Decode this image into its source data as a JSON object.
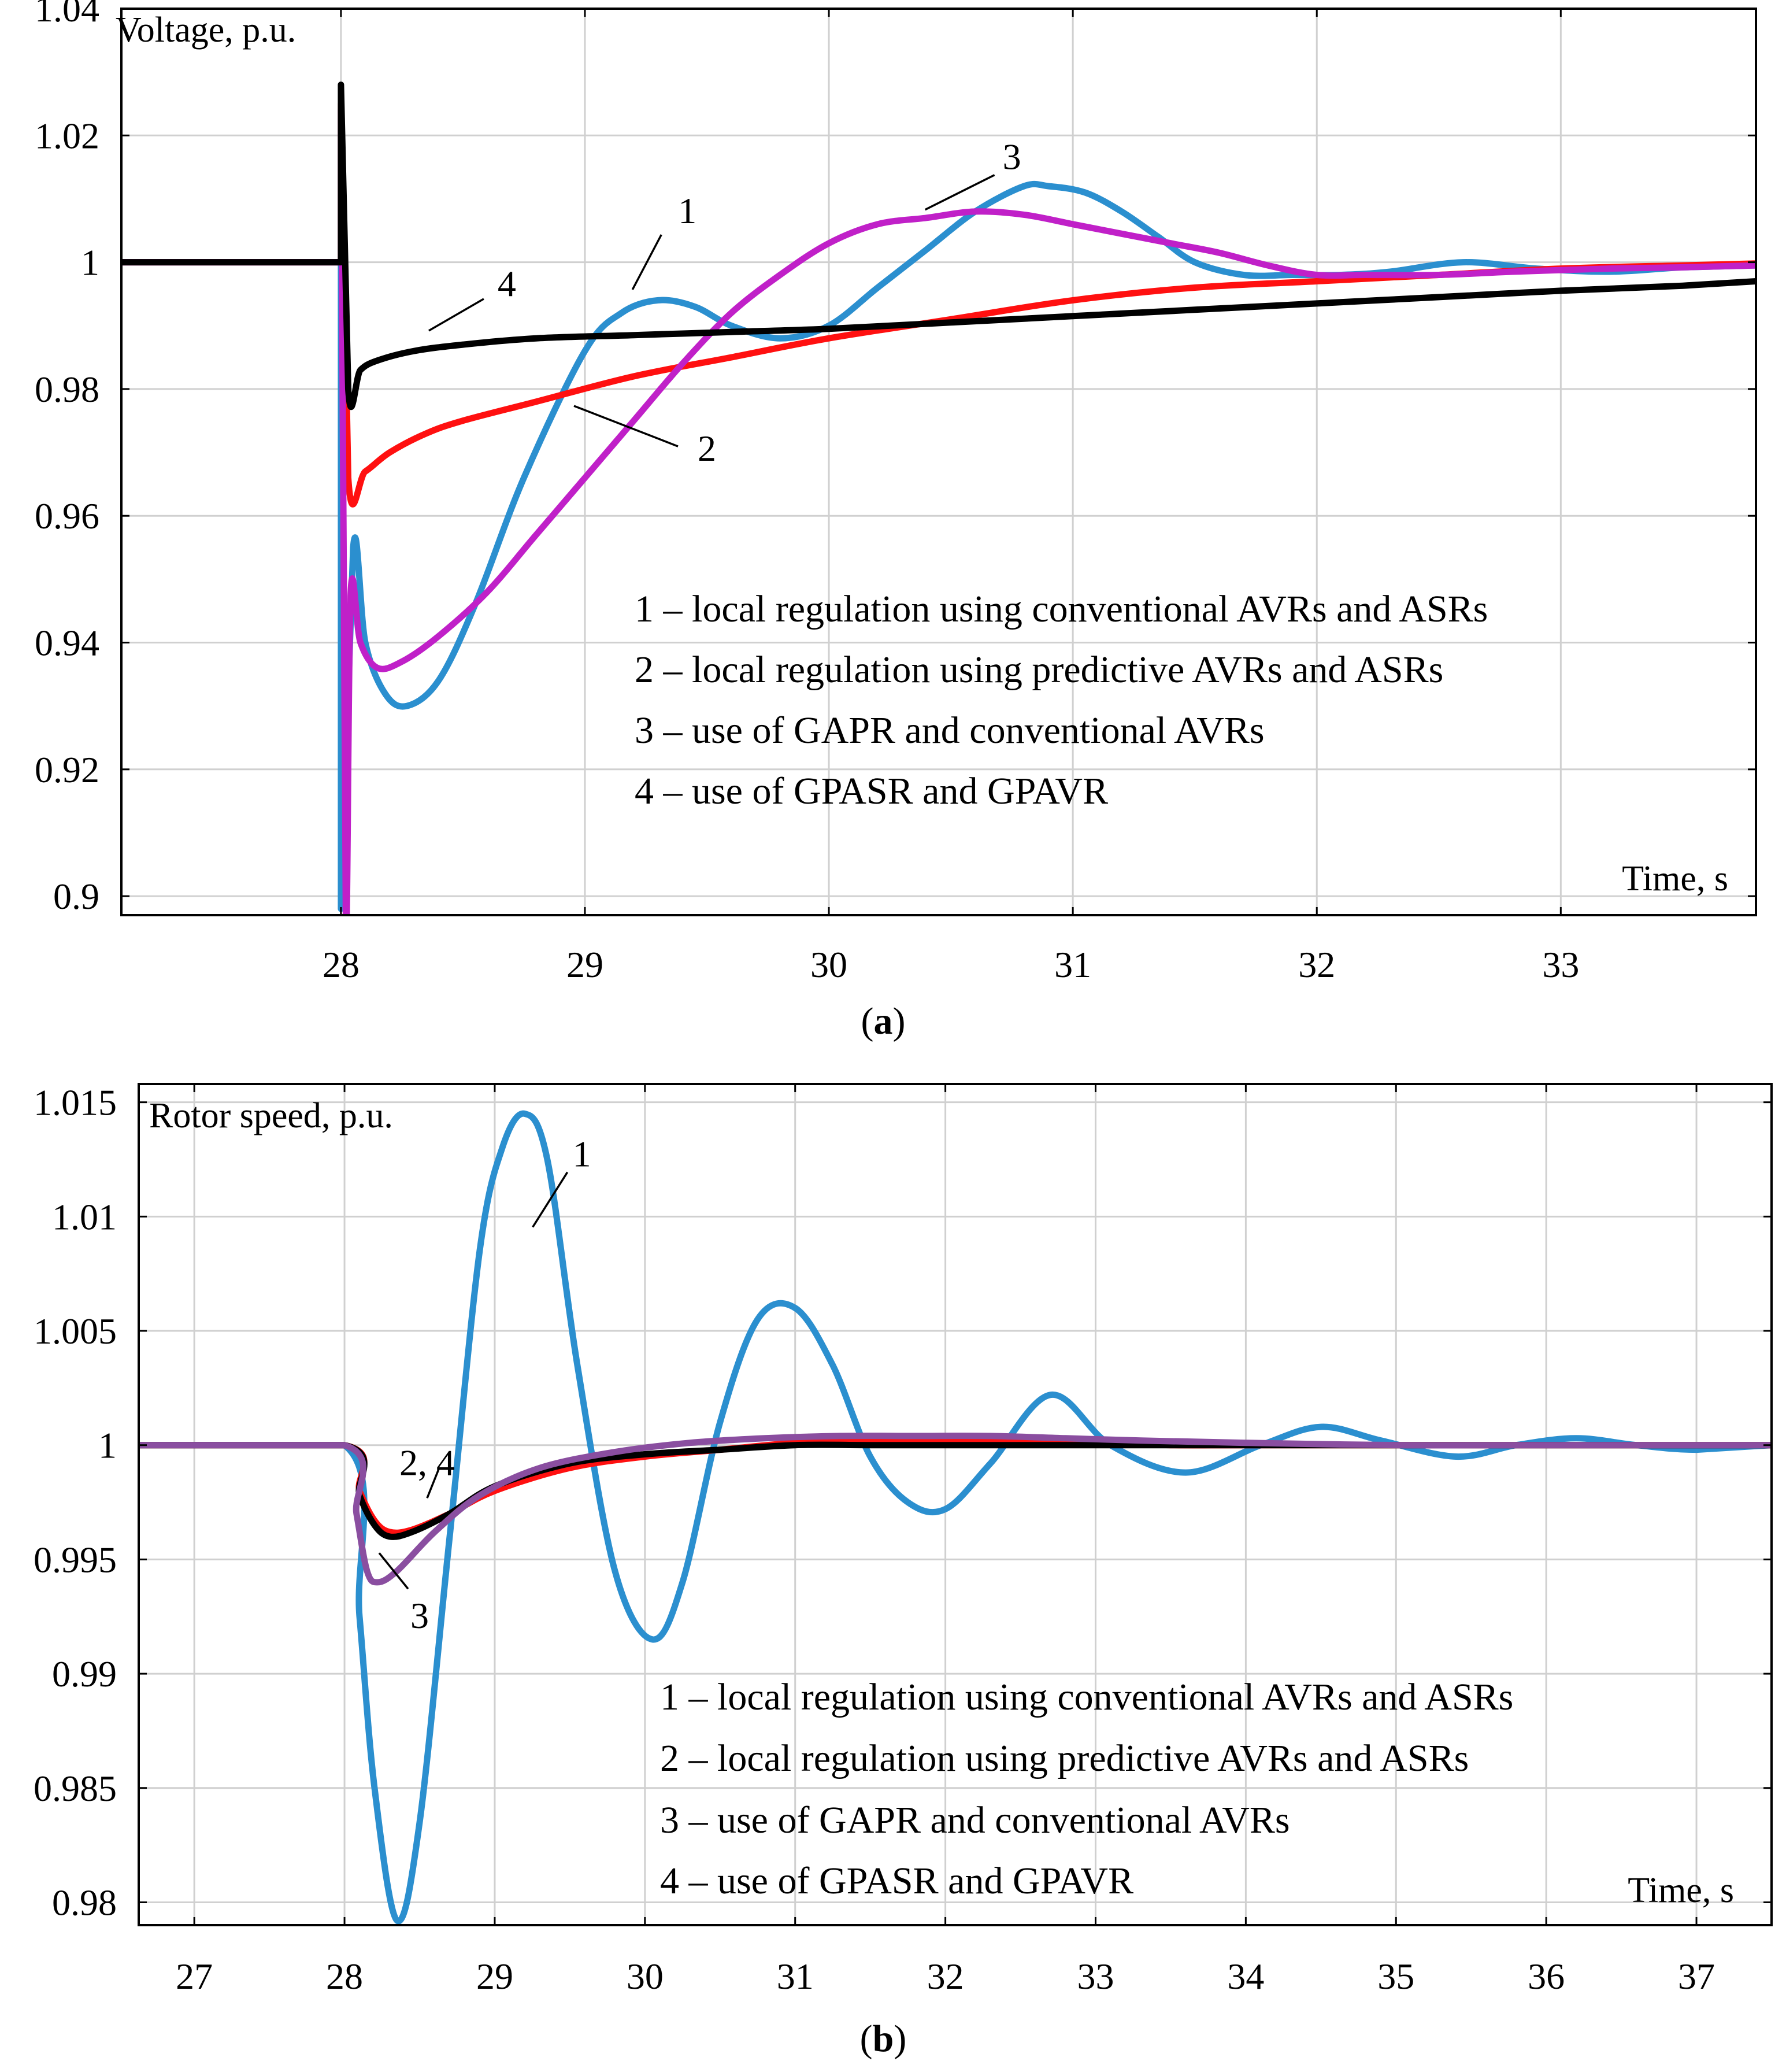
{
  "chart_data": [
    {
      "panel": "a",
      "type": "line",
      "caption_letter": "a",
      "ylabel": "Voltage, p.u.",
      "xlabel": "Time, s",
      "xlim": [
        27.1,
        33.8
      ],
      "ylim": [
        0.897,
        1.04
      ],
      "xticks": [
        28,
        29,
        30,
        31,
        32,
        33
      ],
      "yticks": [
        0.9,
        0.92,
        0.94,
        0.96,
        0.98,
        1,
        1.02,
        1.04
      ],
      "ytick_labels": [
        "0.9",
        "0.92",
        "0.94",
        "0.96",
        "0.98",
        "1",
        "1.02",
        "1.04"
      ],
      "grid": true,
      "legend_position": "bottom-right",
      "legend": [
        "1 – local regulation using conventional AVRs and ASRs",
        "2 – local regulation using predictive AVRs and ASRs",
        "3 – use of GAPR and conventional AVRs",
        "4 – use of GPASR and GPAVR"
      ],
      "series": [
        {
          "label": "1",
          "color": "#2b8fcf",
          "x": [
            27.1,
            28.0,
            28.0,
            28.05,
            28.1,
            28.18,
            28.27,
            28.4,
            28.55,
            28.75,
            29.0,
            29.15,
            29.3,
            29.45,
            29.6,
            29.8,
            30.0,
            30.2,
            30.4,
            30.6,
            30.8,
            30.9,
            31.05,
            31.2,
            31.35,
            31.5,
            31.7,
            31.9,
            32.1,
            32.3,
            32.6,
            32.9,
            33.2,
            33.5,
            33.8
          ],
          "y": [
            1.0,
            1.0,
            0.898,
            0.955,
            0.94,
            0.932,
            0.93,
            0.934,
            0.946,
            0.966,
            0.986,
            0.992,
            0.994,
            0.993,
            0.99,
            0.988,
            0.99,
            0.996,
            1.002,
            1.008,
            1.012,
            1.012,
            1.011,
            1.008,
            1.004,
            1.0,
            0.998,
            0.998,
            0.998,
            0.9985,
            1.0,
            0.999,
            0.9985,
            0.9992,
            0.9995
          ]
        },
        {
          "label": "2",
          "color": "#ff1010",
          "x": [
            27.1,
            28.0,
            28.0,
            28.03,
            28.1,
            28.2,
            28.35,
            28.5,
            28.8,
            29.2,
            29.6,
            30.0,
            30.5,
            31.0,
            31.5,
            32.0,
            32.5,
            33.0,
            33.5,
            33.8
          ],
          "y": [
            1.0,
            1.0,
            1.025,
            0.966,
            0.967,
            0.97,
            0.973,
            0.975,
            0.978,
            0.982,
            0.985,
            0.988,
            0.991,
            0.994,
            0.996,
            0.997,
            0.998,
            0.999,
            0.9995,
            0.9998
          ]
        },
        {
          "label": "3",
          "color": "#c020c8",
          "x": [
            27.1,
            28.0,
            28.0,
            28.02,
            28.04,
            28.08,
            28.15,
            28.25,
            28.4,
            28.6,
            28.8,
            29.0,
            29.2,
            29.4,
            29.6,
            29.8,
            30.0,
            30.2,
            30.4,
            30.6,
            30.8,
            31.0,
            31.2,
            31.4,
            31.6,
            31.8,
            32.0,
            32.2,
            32.5,
            32.8,
            33.2,
            33.5,
            33.8
          ],
          "y": [
            1.0,
            1.0,
            1.024,
            0.897,
            0.948,
            0.94,
            0.936,
            0.937,
            0.941,
            0.948,
            0.957,
            0.966,
            0.975,
            0.984,
            0.992,
            0.998,
            1.003,
            1.006,
            1.007,
            1.008,
            1.0075,
            1.006,
            1.0045,
            1.003,
            1.0015,
            0.9995,
            0.998,
            0.998,
            0.998,
            0.9985,
            0.999,
            0.9992,
            0.9995
          ]
        },
        {
          "label": "4",
          "color": "#000000",
          "x": [
            27.1,
            28.0,
            28.0,
            28.03,
            28.08,
            28.15,
            28.3,
            28.5,
            28.8,
            29.2,
            29.6,
            30.0,
            30.5,
            31.0,
            31.5,
            32.0,
            32.5,
            33.0,
            33.5,
            33.8
          ],
          "y": [
            1.0,
            1.0,
            1.028,
            0.98,
            0.983,
            0.9845,
            0.986,
            0.987,
            0.988,
            0.9885,
            0.989,
            0.9895,
            0.9905,
            0.9915,
            0.9925,
            0.9935,
            0.9945,
            0.9955,
            0.9963,
            0.997
          ]
        }
      ],
      "curve_labels": [
        {
          "text": "1",
          "x": 29.42,
          "y": 1.008
        },
        {
          "text": "2",
          "x": 29.5,
          "y": 0.9705
        },
        {
          "text": "3",
          "x": 30.75,
          "y": 1.0165
        },
        {
          "text": "4",
          "x": 28.68,
          "y": 0.9965
        }
      ]
    },
    {
      "panel": "b",
      "type": "line",
      "caption_letter": "b",
      "ylabel": "Rotor speed, p.u.",
      "xlabel": "Time, s",
      "xlim": [
        26.63,
        37.5
      ],
      "ylim": [
        0.979,
        1.0158
      ],
      "xticks": [
        27,
        28,
        29,
        30,
        31,
        32,
        33,
        34,
        35,
        36,
        37
      ],
      "yticks": [
        0.98,
        0.985,
        0.99,
        0.995,
        1,
        1.005,
        1.01,
        1.015
      ],
      "ytick_labels": [
        "0.98",
        "0.985",
        "0.99",
        "0.995",
        "1",
        "1.005",
        "1.01",
        "1.015"
      ],
      "grid": true,
      "legend_position": "bottom-right",
      "legend": [
        "1 – local regulation using conventional AVRs and ASRs",
        "2 – local regulation using predictive AVRs and ASRs",
        "3 – use of GAPR and conventional AVRs",
        "4 – use of GPASR and GPAVR"
      ],
      "series": [
        {
          "label": "1",
          "color": "#2b8fcf",
          "x": [
            26.63,
            28.0,
            28.1,
            28.2,
            28.35,
            28.5,
            28.7,
            28.9,
            29.05,
            29.2,
            29.35,
            29.55,
            29.8,
            30.05,
            30.25,
            30.5,
            30.75,
            31.0,
            31.25,
            31.5,
            31.75,
            32.0,
            32.3,
            32.7,
            33.1,
            33.6,
            34.1,
            34.5,
            34.9,
            35.4,
            35.8,
            36.2,
            36.6,
            37.0,
            37.5
          ],
          "y": [
            1.0,
            1.0,
            0.9925,
            0.985,
            0.9792,
            0.9835,
            0.996,
            1.0085,
            1.013,
            1.0145,
            1.0125,
            1.0035,
            0.9945,
            0.9915,
            0.994,
            1.001,
            1.0055,
            1.006,
            1.0035,
            0.9995,
            0.9975,
            0.9972,
            0.9992,
            1.0022,
            1.0,
            0.9988,
            1.0,
            1.0008,
            1.0002,
            0.9995,
            1.0,
            1.0003,
            1.0,
            0.9998,
            1.0
          ]
        },
        {
          "label": "2",
          "color": "#ff1010",
          "x": [
            26.63,
            28.0,
            28.1,
            28.2,
            28.3,
            28.45,
            28.7,
            29.0,
            29.5,
            30.0,
            30.5,
            31.0,
            31.5,
            32.0,
            32.5,
            33.0,
            33.5,
            34.0,
            35.0,
            36.0,
            37.5
          ],
          "y": [
            1.0,
            1.0,
            0.998,
            0.9967,
            0.9962,
            0.9963,
            0.997,
            0.998,
            0.999,
            0.9995,
            0.9998,
            1.0001,
            1.0002,
            1.0002,
            1.0002,
            1.0001,
            1.0,
            1.0,
            1.0,
            1.0,
            1.0
          ]
        },
        {
          "label": "4",
          "color": "#000000",
          "x": [
            26.63,
            28.0,
            28.1,
            28.2,
            28.3,
            28.45,
            28.7,
            29.0,
            29.5,
            30.0,
            30.5,
            31.0,
            31.5,
            32.0,
            32.5,
            33.0,
            33.5,
            34.0,
            35.0,
            36.0,
            37.5
          ],
          "y": [
            1.0,
            1.0,
            0.9978,
            0.9965,
            0.996,
            0.9962,
            0.997,
            0.9982,
            0.9992,
            0.9996,
            0.9998,
            1.0,
            1.0,
            1.0,
            1.0,
            1.0,
            1.0,
            1.0,
            1.0,
            1.0,
            1.0
          ]
        },
        {
          "label": "3",
          "color": "#8a4ea0",
          "x": [
            26.63,
            28.0,
            28.08,
            28.15,
            28.22,
            28.35,
            28.6,
            28.9,
            29.3,
            29.8,
            30.3,
            30.8,
            31.3,
            31.8,
            32.3,
            32.8,
            33.3,
            34.0,
            35.0,
            36.0,
            37.5
          ],
          "y": [
            1.0,
            1.0,
            0.997,
            0.9945,
            0.994,
            0.9945,
            0.9962,
            0.9978,
            0.999,
            0.9997,
            1.0001,
            1.0003,
            1.0004,
            1.0004,
            1.0004,
            1.0003,
            1.0002,
            1.0001,
            1.0,
            1.0,
            1.0
          ]
        }
      ],
      "curve_labels": [
        {
          "text": "1",
          "x": 29.58,
          "y": 1.0127
        },
        {
          "text": "2, 4",
          "x": 28.55,
          "y": 0.9992
        },
        {
          "text": "3",
          "x": 28.5,
          "y": 0.9925
        }
      ]
    }
  ]
}
